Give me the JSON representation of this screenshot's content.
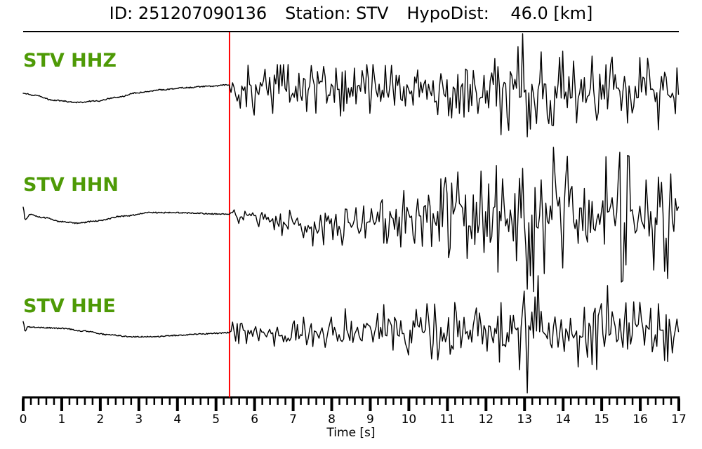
{
  "header": {
    "id_text": "ID: 251207090136",
    "station_text": "Station: STV",
    "hypodist_text": "HypoDist:    46.0 [km]"
  },
  "colors": {
    "channel_label_green": "#4e9a06",
    "pick_red": "#ff0000",
    "trace_black": "#000000",
    "background": "#ffffff"
  },
  "chart_data": {
    "type": "line",
    "title": "ID: 251207090136   Station: STV   HypoDist:    46.0 [km]",
    "xlabel": "Time [s]",
    "xlim": [
      0,
      17
    ],
    "x_major_tick_interval": 1,
    "x_minor_tick_interval": 0.2,
    "x_tick_labels": [
      "0",
      "1",
      "2",
      "3",
      "4",
      "5",
      "6",
      "7",
      "8",
      "9",
      "10",
      "11",
      "12",
      "13",
      "14",
      "15",
      "16",
      "17"
    ],
    "grid": false,
    "legend": "none",
    "pick_time_s": 5.35,
    "units": "pixel offsets from each trace centerline, +down",
    "channels": [
      {
        "label": "STV HHZ",
        "pre_event_drift": [
          [
            0,
            3
          ],
          [
            0.3,
            6
          ],
          [
            0.8,
            13
          ],
          [
            1.4,
            16
          ],
          [
            1.9,
            14
          ],
          [
            2.4,
            9
          ],
          [
            3.0,
            2
          ],
          [
            3.6,
            -2
          ],
          [
            4.2,
            -5
          ],
          [
            4.8,
            -7
          ],
          [
            5.35,
            -9
          ]
        ],
        "noise_envelope": [
          [
            5.35,
            30
          ],
          [
            5.5,
            34
          ],
          [
            6,
            38
          ],
          [
            7,
            38
          ],
          [
            8,
            35
          ],
          [
            9,
            38
          ],
          [
            10,
            36
          ],
          [
            11,
            38
          ],
          [
            12,
            42
          ],
          [
            12.6,
            56
          ],
          [
            13.0,
            68
          ],
          [
            13.5,
            64
          ],
          [
            14,
            62
          ],
          [
            14.5,
            57
          ],
          [
            15,
            50
          ],
          [
            15.8,
            45
          ],
          [
            16.3,
            47
          ],
          [
            17,
            41
          ]
        ],
        "center_offset": [
          [
            5.35,
            0
          ],
          [
            17,
            0
          ]
        ],
        "spikes": [
          [
            5.42,
            -12
          ],
          [
            12.38,
            62
          ],
          [
            12.95,
            -82
          ],
          [
            13.06,
            65
          ],
          [
            13.42,
            -56
          ],
          [
            13.98,
            -57
          ],
          [
            14.75,
            -50
          ],
          [
            16.0,
            -48
          ],
          [
            16.45,
            55
          ]
        ]
      },
      {
        "label": "STV HHN",
        "pre_event_drift": [
          [
            0,
            -15
          ],
          [
            0.05,
            3
          ],
          [
            0.18,
            -4
          ],
          [
            0.5,
            0
          ],
          [
            1.0,
            6
          ],
          [
            1.4,
            8
          ],
          [
            1.9,
            5
          ],
          [
            2.6,
            -2
          ],
          [
            3.3,
            -7
          ],
          [
            3.9,
            -7
          ],
          [
            4.5,
            -6
          ],
          [
            5.0,
            -5
          ],
          [
            5.35,
            -5
          ]
        ],
        "noise_envelope": [
          [
            5.35,
            9
          ],
          [
            6,
            11
          ],
          [
            6.5,
            16
          ],
          [
            7,
            22
          ],
          [
            7.5,
            26
          ],
          [
            8,
            25
          ],
          [
            8.7,
            26
          ],
          [
            9.3,
            31
          ],
          [
            9.8,
            40
          ],
          [
            10.3,
            47
          ],
          [
            10.8,
            55
          ],
          [
            11.3,
            65
          ],
          [
            11.8,
            77
          ],
          [
            12.3,
            87
          ],
          [
            12.8,
            97
          ],
          [
            13.3,
            106
          ],
          [
            13.8,
            100
          ],
          [
            14.3,
            92
          ],
          [
            14.8,
            97
          ],
          [
            15.3,
            95
          ],
          [
            15.8,
            87
          ],
          [
            16.3,
            91
          ],
          [
            17,
            85
          ]
        ],
        "center_offset": [
          [
            5.35,
            -2
          ],
          [
            6,
            1
          ],
          [
            6.6,
            8
          ],
          [
            7.2,
            14
          ],
          [
            8,
            16
          ],
          [
            8.6,
            12
          ],
          [
            9.2,
            6
          ],
          [
            9.8,
            2
          ],
          [
            10.4,
            0
          ],
          [
            17,
            0
          ]
        ],
        "spikes": [
          [
            11.85,
            -66
          ],
          [
            12.95,
            -70
          ],
          [
            13.15,
            83
          ],
          [
            13.5,
            80
          ],
          [
            14.0,
            72
          ],
          [
            16.35,
            75
          ],
          [
            16.8,
            -62
          ]
        ]
      },
      {
        "label": "STV HHE",
        "pre_event_drift": [
          [
            0,
            -17
          ],
          [
            0.05,
            -3
          ],
          [
            0.12,
            -9
          ],
          [
            0.5,
            -8
          ],
          [
            1.0,
            -7
          ],
          [
            1.6,
            -3
          ],
          [
            2.2,
            2
          ],
          [
            2.8,
            5
          ],
          [
            3.4,
            5
          ],
          [
            4.0,
            3
          ],
          [
            4.6,
            1
          ],
          [
            5.0,
            0
          ],
          [
            5.35,
            -1
          ]
        ],
        "noise_envelope": [
          [
            5.35,
            12
          ],
          [
            5.5,
            16
          ],
          [
            6,
            17
          ],
          [
            6.5,
            19
          ],
          [
            7,
            20
          ],
          [
            7.5,
            22
          ],
          [
            8,
            26
          ],
          [
            8.5,
            30
          ],
          [
            9,
            32
          ],
          [
            9.5,
            34
          ],
          [
            10,
            36
          ],
          [
            10.5,
            39
          ],
          [
            11,
            41
          ],
          [
            11.5,
            45
          ],
          [
            12,
            50
          ],
          [
            12.5,
            54
          ],
          [
            13,
            60
          ],
          [
            13.5,
            57
          ],
          [
            14,
            52
          ],
          [
            14.5,
            50
          ],
          [
            15,
            52
          ],
          [
            15.5,
            47
          ],
          [
            16,
            44
          ],
          [
            16.5,
            46
          ],
          [
            17,
            42
          ]
        ],
        "center_offset": [
          [
            5.35,
            -2
          ],
          [
            6,
            0
          ],
          [
            7,
            -1
          ],
          [
            8,
            -5
          ],
          [
            9,
            -8
          ],
          [
            10,
            -5
          ],
          [
            10.8,
            -2
          ],
          [
            12,
            0
          ],
          [
            17,
            0
          ]
        ],
        "spikes": [
          [
            5.42,
            -14
          ],
          [
            12.85,
            52
          ],
          [
            13.05,
            85
          ],
          [
            13.35,
            -82
          ],
          [
            14.4,
            48
          ],
          [
            15.15,
            -68
          ]
        ]
      }
    ]
  }
}
